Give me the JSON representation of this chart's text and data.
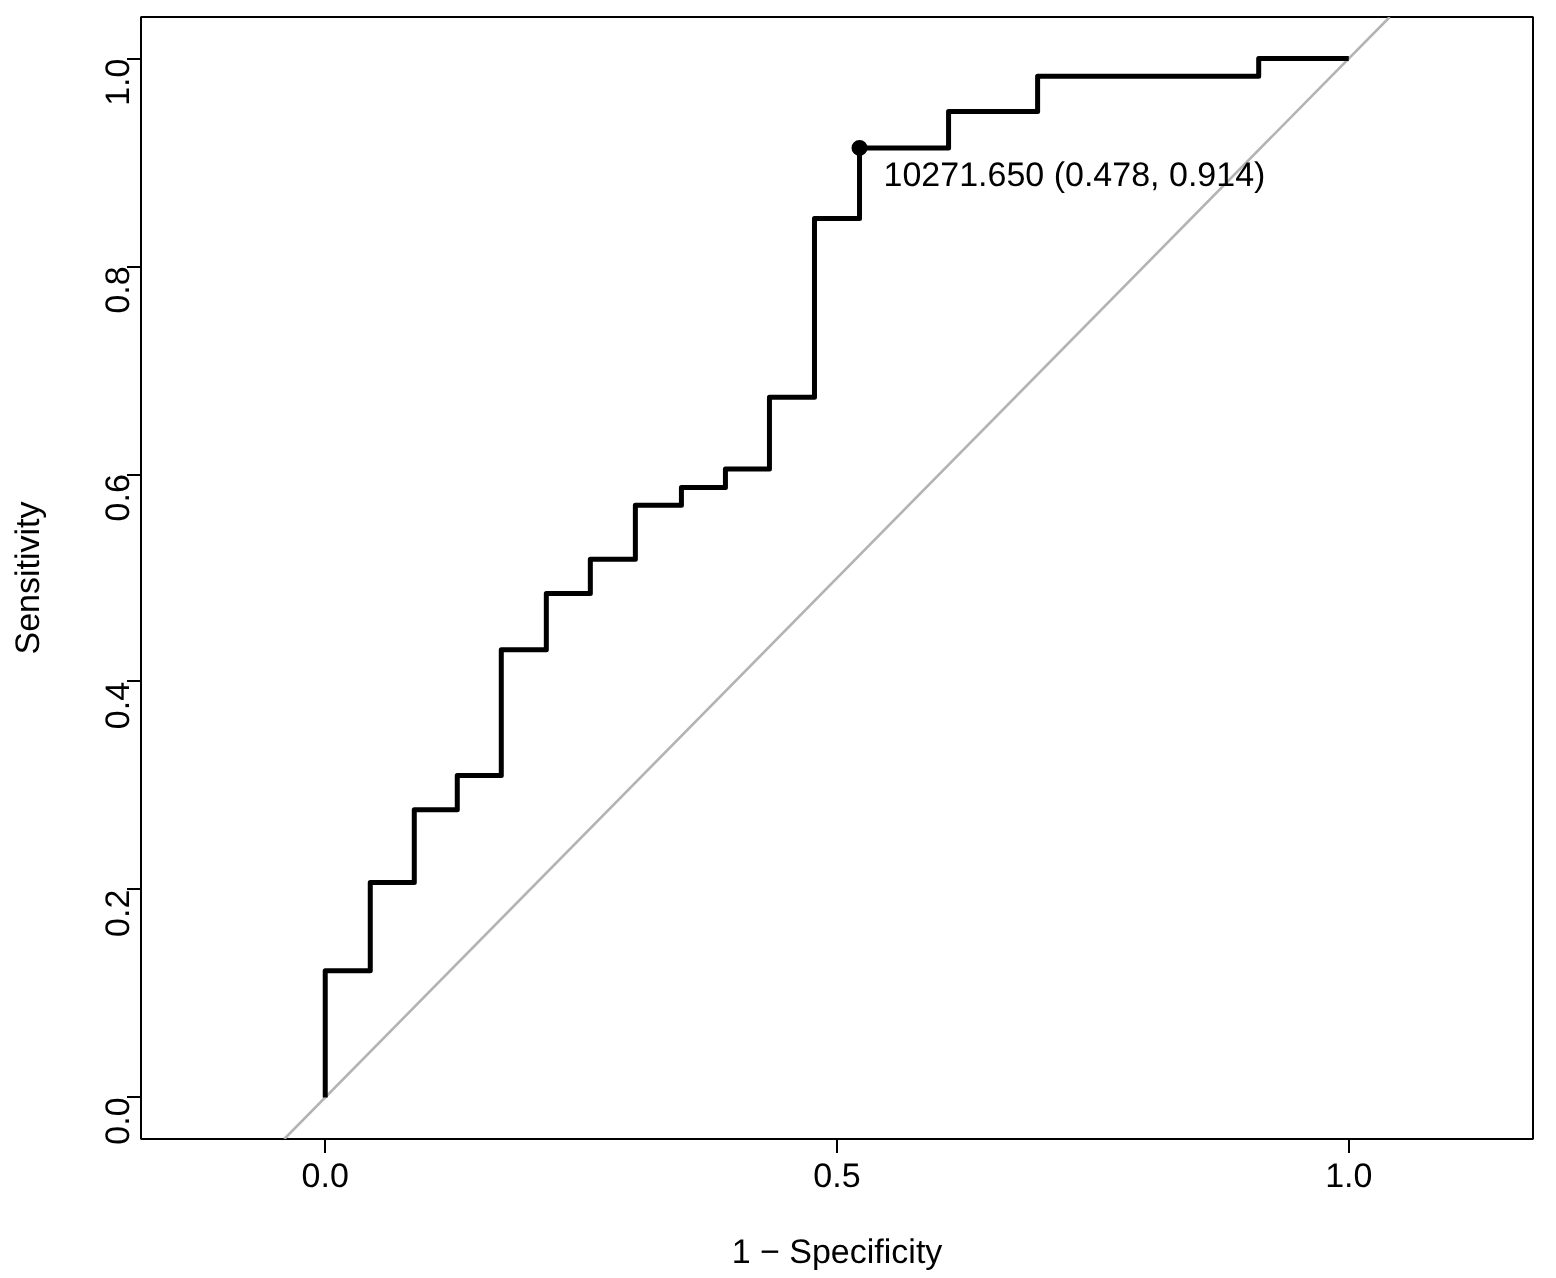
{
  "chart_data": {
    "type": "step",
    "xlabel": "1 − Specificity",
    "ylabel": "Sensitivity",
    "xlim": [
      -0.18,
      1.18
    ],
    "ylim": [
      -0.04,
      1.04
    ],
    "xticks": [
      {
        "value": 0,
        "label": "0.0"
      },
      {
        "value": 0.5,
        "label": "0.5"
      },
      {
        "value": 1,
        "label": "1.0"
      }
    ],
    "yticks": [
      {
        "value": 0,
        "label": "0.0"
      },
      {
        "value": 0.2,
        "label": "0.2"
      },
      {
        "value": 0.4,
        "label": "0.4"
      },
      {
        "value": 0.6,
        "label": "0.6"
      },
      {
        "value": 0.8,
        "label": "0.8"
      },
      {
        "value": 1,
        "label": "1.0"
      }
    ],
    "grid": false,
    "series": [
      {
        "type": "line",
        "color": "#b3b3b3",
        "x": [
          -0.04,
          1.04
        ],
        "values": [
          -0.04,
          1.04
        ]
      },
      {
        "color": "#000000",
        "x": [
          0,
          0,
          0.044,
          0.087,
          0.129,
          0.172,
          0.216,
          0.259,
          0.303,
          0.348,
          0.391,
          0.434,
          0.478,
          0.522,
          0.609,
          0.696,
          0.912,
          1.0
        ],
        "values": [
          0,
          0.122,
          0.207,
          0.277,
          0.31,
          0.431,
          0.485,
          0.518,
          0.57,
          0.587,
          0.605,
          0.674,
          0.846,
          0.914,
          0.949,
          0.983,
          1.0,
          1.0
        ]
      },
      {
        "type": "scatter",
        "color": "#000000",
        "marker": "circle",
        "x": [
          0.522
        ],
        "values": [
          0.914
        ]
      }
    ],
    "annotations": [
      {
        "text": "10271.650 (0.478, 0.914)",
        "x": 0.522,
        "y": 0.914
      }
    ]
  }
}
